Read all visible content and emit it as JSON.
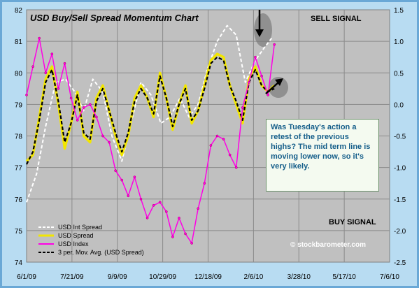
{
  "chart_data": {
    "type": "line",
    "title": "USD Buy/Sell Spread Momentum Chart",
    "x_ticks": [
      "6/1/09",
      "7/21/09",
      "9/9/09",
      "10/29/09",
      "12/18/09",
      "2/6/10",
      "3/28/10",
      "5/17/10",
      "7/6/10"
    ],
    "y_left_ticks": [
      "74",
      "75",
      "76",
      "77",
      "78",
      "79",
      "80",
      "81",
      "82"
    ],
    "y_right_ticks": [
      "-2.5",
      "-2.0",
      "-1.5",
      "-1.0",
      "-0.5",
      "0.0",
      "0.5",
      "1.0",
      "1.5"
    ],
    "ylim_left": [
      74,
      82
    ],
    "ylim_right": [
      -2.5,
      1.5
    ],
    "xlim": [
      "2009-06-01",
      "2010-07-06"
    ],
    "annotations": {
      "sell_signal": "SELL SIGNAL",
      "buy_signal": "BUY SIGNAL",
      "note": "Was Tuesday's action a retest of the previous highs?  The mid term line is moving lower now, so it's very likely.",
      "watermark": "© stockbarometer.com"
    },
    "series": [
      {
        "name": "USD Int Spread",
        "axis": "right",
        "color": "#ffffff",
        "dash": true,
        "x": [
          "2009-06-01",
          "2009-06-12",
          "2009-06-22",
          "2009-07-03",
          "2009-07-14",
          "2009-07-24",
          "2009-08-03",
          "2009-08-13",
          "2009-08-24",
          "2009-09-03",
          "2009-09-14",
          "2009-09-24",
          "2009-10-05",
          "2009-10-16",
          "2009-10-27",
          "2009-11-06",
          "2009-11-17",
          "2009-11-27",
          "2009-12-07",
          "2009-12-17",
          "2009-12-28",
          "2010-01-08",
          "2010-01-18",
          "2010-01-28",
          "2010-02-08",
          "2010-02-18",
          "2010-02-26"
        ],
        "values": [
          -1.55,
          -1.1,
          -0.35,
          0.35,
          0.4,
          0.2,
          -0.1,
          0.4,
          0.2,
          -0.5,
          -0.9,
          -0.3,
          0.35,
          0.15,
          -0.3,
          -0.2,
          0.1,
          -0.2,
          0.0,
          0.55,
          1.0,
          1.25,
          1.1,
          0.35,
          0.7,
          0.9,
          1.05
        ]
      },
      {
        "name": "USD Spread",
        "axis": "right",
        "color": "#f2e600",
        "x": [
          "2009-06-01",
          "2009-06-08",
          "2009-06-15",
          "2009-06-22",
          "2009-06-29",
          "2009-07-06",
          "2009-07-13",
          "2009-07-20",
          "2009-07-27",
          "2009-08-03",
          "2009-08-10",
          "2009-08-17",
          "2009-08-24",
          "2009-08-31",
          "2009-09-07",
          "2009-09-14",
          "2009-09-21",
          "2009-09-28",
          "2009-10-05",
          "2009-10-12",
          "2009-10-19",
          "2009-10-26",
          "2009-11-02",
          "2009-11-09",
          "2009-11-16",
          "2009-11-23",
          "2009-11-30",
          "2009-12-07",
          "2009-12-14",
          "2009-12-21",
          "2009-12-28",
          "2010-01-04",
          "2010-01-11",
          "2010-01-18",
          "2010-01-25",
          "2010-02-01",
          "2010-02-08",
          "2010-02-15",
          "2010-02-22",
          "2010-03-01"
        ],
        "values": [
          -0.9,
          -0.8,
          -0.2,
          0.4,
          0.6,
          0.0,
          -0.7,
          -0.3,
          0.2,
          -0.5,
          -0.6,
          0.1,
          0.3,
          -0.1,
          -0.5,
          -0.8,
          -0.5,
          0.1,
          0.3,
          0.1,
          -0.2,
          0.5,
          0.1,
          -0.4,
          0.0,
          0.3,
          -0.3,
          -0.1,
          0.3,
          0.7,
          0.8,
          0.75,
          0.3,
          0.0,
          -0.3,
          0.4,
          0.6,
          0.3,
          0.2,
          0.3
        ]
      },
      {
        "name": "USD Index",
        "axis": "left",
        "color": "#ff00e6",
        "x": [
          "2009-06-01",
          "2009-06-08",
          "2009-06-15",
          "2009-06-22",
          "2009-06-29",
          "2009-07-06",
          "2009-07-13",
          "2009-07-20",
          "2009-07-27",
          "2009-08-03",
          "2009-08-10",
          "2009-08-17",
          "2009-08-24",
          "2009-08-31",
          "2009-09-07",
          "2009-09-14",
          "2009-09-21",
          "2009-09-28",
          "2009-10-05",
          "2009-10-12",
          "2009-10-19",
          "2009-10-26",
          "2009-11-02",
          "2009-11-09",
          "2009-11-16",
          "2009-11-23",
          "2009-11-30",
          "2009-12-07",
          "2009-12-14",
          "2009-12-21",
          "2009-12-28",
          "2010-01-04",
          "2010-01-11",
          "2010-01-18",
          "2010-01-25",
          "2010-02-01",
          "2010-02-08",
          "2010-02-15",
          "2010-02-22",
          "2010-03-01"
        ],
        "values": [
          79.3,
          80.2,
          81.1,
          80.0,
          80.6,
          79.5,
          80.3,
          79.2,
          78.5,
          78.9,
          79.0,
          78.6,
          78.0,
          77.8,
          76.9,
          76.6,
          76.1,
          76.7,
          76.0,
          75.4,
          75.8,
          75.9,
          75.6,
          74.8,
          75.4,
          74.9,
          74.6,
          75.7,
          76.5,
          77.7,
          78.0,
          77.9,
          77.4,
          77.0,
          78.9,
          79.7,
          80.5,
          79.9,
          79.3,
          80.9
        ]
      },
      {
        "name": "3 per. Mov. Avg. (USD Spread)",
        "axis": "right",
        "color": "#000000",
        "dash": true,
        "x": [
          "2009-06-01",
          "2009-06-08",
          "2009-06-15",
          "2009-06-22",
          "2009-06-29",
          "2009-07-06",
          "2009-07-13",
          "2009-07-20",
          "2009-07-27",
          "2009-08-03",
          "2009-08-10",
          "2009-08-17",
          "2009-08-24",
          "2009-08-31",
          "2009-09-07",
          "2009-09-14",
          "2009-09-21",
          "2009-09-28",
          "2009-10-05",
          "2009-10-12",
          "2009-10-19",
          "2009-10-26",
          "2009-11-02",
          "2009-11-09",
          "2009-11-16",
          "2009-11-23",
          "2009-11-30",
          "2009-12-07",
          "2009-12-14",
          "2009-12-21",
          "2009-12-28",
          "2010-01-04",
          "2010-01-11",
          "2010-01-18",
          "2010-01-25",
          "2010-02-01",
          "2010-02-08",
          "2010-02-15",
          "2010-02-22",
          "2010-03-01"
        ],
        "values": [
          -0.95,
          -0.75,
          -0.25,
          0.35,
          0.55,
          0.05,
          -0.6,
          -0.3,
          0.15,
          -0.45,
          -0.55,
          0.05,
          0.25,
          -0.1,
          -0.45,
          -0.75,
          -0.45,
          0.05,
          0.25,
          0.1,
          -0.15,
          0.45,
          0.1,
          -0.35,
          0.0,
          0.25,
          -0.25,
          -0.1,
          0.25,
          0.65,
          0.75,
          0.7,
          0.3,
          0.05,
          -0.25,
          0.35,
          0.55,
          0.3,
          0.2,
          0.25
        ]
      }
    ]
  }
}
